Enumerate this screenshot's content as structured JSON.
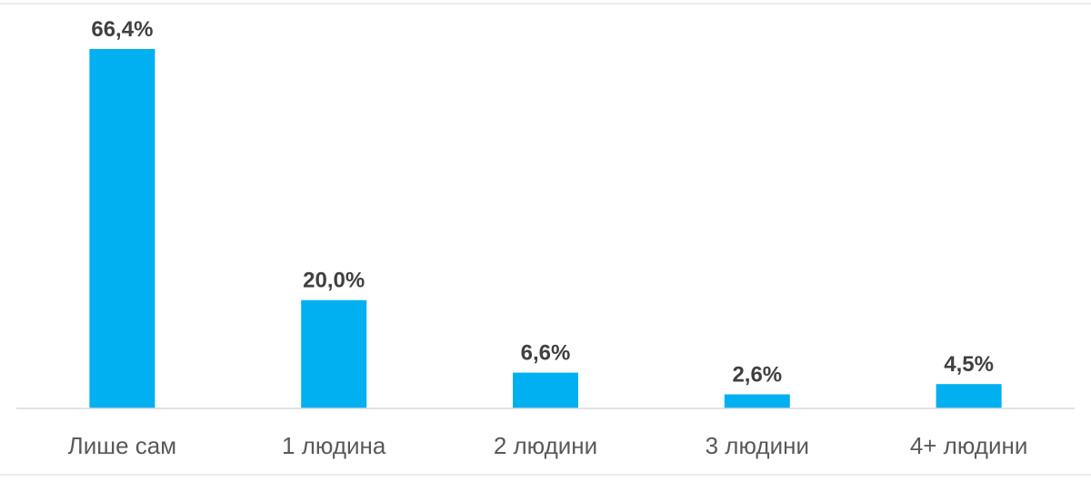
{
  "chart_data": {
    "type": "bar",
    "categories": [
      "Лише сам",
      "1 людина",
      "2 людини",
      "3 людини",
      "4+ людини"
    ],
    "values": [
      66.4,
      20.0,
      6.6,
      2.6,
      4.5
    ],
    "value_labels": [
      "66,4%",
      "20,0%",
      "6,6%",
      "2,6%",
      "4,5%"
    ],
    "title": "",
    "xlabel": "",
    "ylabel": "",
    "ylim": [
      0,
      66.4
    ],
    "grid": false,
    "legend": "none",
    "bar_color": "#00B0F0",
    "axis_color": "#D9D9D9"
  }
}
